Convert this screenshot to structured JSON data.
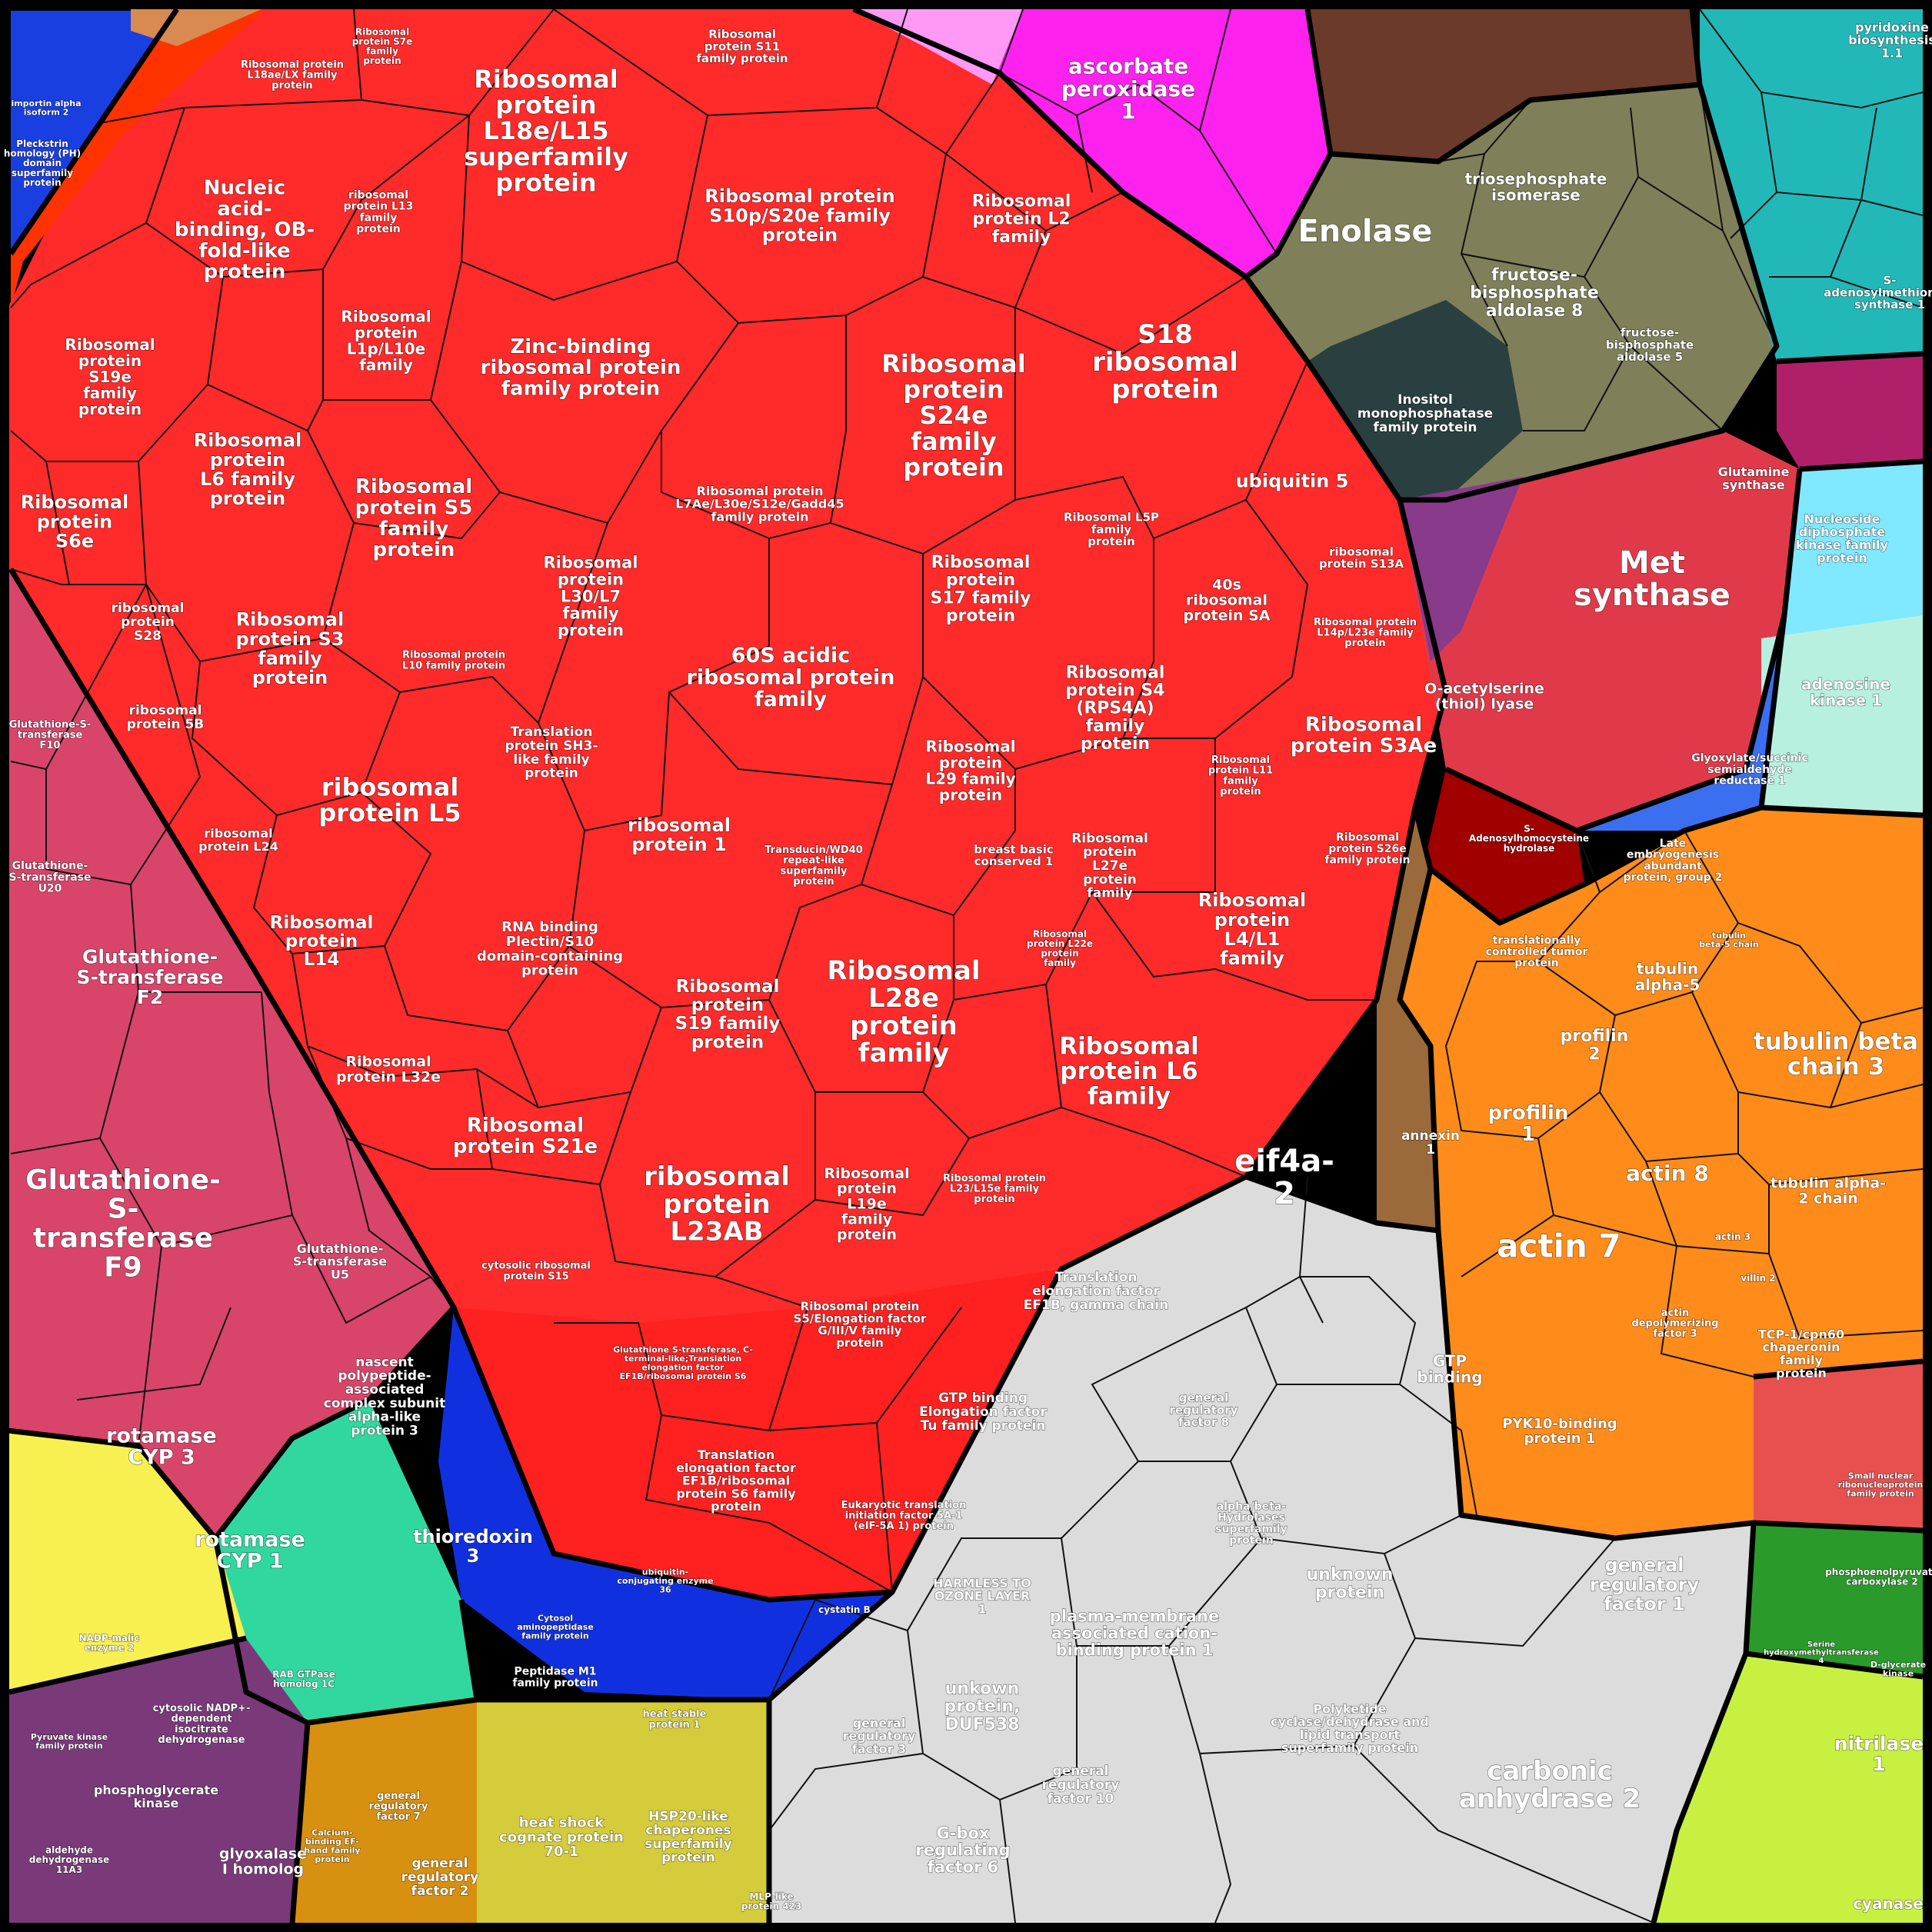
{
  "title": "",
  "colors": {
    "ribosomal": "#ff2a2a",
    "gst": "#d9456a",
    "grey": "#dcdcdc",
    "orange": "#ff8c1a",
    "magenta": "#ff22ee",
    "olive": "#7f7f5a",
    "teal": "#22b8b8",
    "blue": "#1a3fe0",
    "yellow": "#d4cc3a",
    "purple": "#7a3a7a",
    "green": "#2a9a2a",
    "lime": "#c8f040",
    "cyan": "#7fe8ff",
    "crimson": "#e03a4a",
    "darkred": "#a00000",
    "gold": "#d89010",
    "brown": "#9a6a3a"
  },
  "cells": [
    {
      "id": "c1",
      "label": "Ribosomal protein L18e/L15 superfamily protein",
      "size": 32
    },
    {
      "id": "c2",
      "label": "Ribosomal protein S10p/S20e family protein",
      "size": 24
    },
    {
      "id": "c3",
      "label": "Nucleic acid-binding, OB-fold-like protein",
      "size": 26
    },
    {
      "id": "c4",
      "label": "Ribosomal protein L2 family",
      "size": 22
    },
    {
      "id": "c5",
      "label": "S18 ribosomal protein",
      "size": 34
    },
    {
      "id": "c6",
      "label": "Zinc-binding ribosomal protein family protein",
      "size": 26
    },
    {
      "id": "c7",
      "label": "Ribosomal protein S24e family protein",
      "size": 32
    },
    {
      "id": "c8",
      "label": "Ribosomal protein S19e family protein",
      "size": 20
    },
    {
      "id": "c9",
      "label": "Ribosomal protein L1p/L10e family",
      "size": 20
    },
    {
      "id": "c10",
      "label": "Ribosomal protein L6 family protein",
      "size": 24
    },
    {
      "id": "c11",
      "label": "Ribosomal protein S5 family protein",
      "size": 26
    },
    {
      "id": "c12",
      "label": "ubiquitin 5",
      "size": 24
    },
    {
      "id": "c13",
      "label": "Ribosomal protein S6e",
      "size": 24
    },
    {
      "id": "c14",
      "label": "Ribosomal protein L7Ae/L30e/S12e/Gadd45 family protein",
      "size": 16
    },
    {
      "id": "c15",
      "label": "Ribosomal protein L30/L7 family protein",
      "size": 21
    },
    {
      "id": "c16",
      "label": "Ribosomal protein S17 family protein",
      "size": 22
    },
    {
      "id": "c17",
      "label": "40s ribosomal protein SA",
      "size": 19
    },
    {
      "id": "c18",
      "label": "ribosomal protein S28",
      "size": 17
    },
    {
      "id": "c19",
      "label": "Ribosomal protein S3 family protein",
      "size": 24
    },
    {
      "id": "c20",
      "label": "60S acidic ribosomal protein family",
      "size": 27
    },
    {
      "id": "c21",
      "label": "Ribosomal protein S4 (RPS4A) family protein",
      "size": 22
    },
    {
      "id": "c22",
      "label": "Ribosomal protein S3Ae",
      "size": 26
    },
    {
      "id": "c23",
      "label": "ribosomal protein 5B",
      "size": 17
    },
    {
      "id": "c24",
      "label": "Translation protein SH3-like family protein",
      "size": 17
    },
    {
      "id": "c25",
      "label": "ribosomal protein L5",
      "size": 32
    },
    {
      "id": "c26",
      "label": "Ribosomal protein L29 family protein",
      "size": 20
    },
    {
      "id": "c27",
      "label": "ribosomal protein 1",
      "size": 24
    },
    {
      "id": "c28",
      "label": "ribosomal protein L24",
      "size": 16
    },
    {
      "id": "c29",
      "label": "breast basic conserved 1",
      "size": 15
    },
    {
      "id": "c30",
      "label": "Ribosomal protein L27e protein family",
      "size": 17
    },
    {
      "id": "c31",
      "label": "Ribosomal protein L14",
      "size": 23
    },
    {
      "id": "c32",
      "label": "RNA binding Plectin/S10 domain-containing protein",
      "size": 18
    },
    {
      "id": "c33",
      "label": "Ribosomal protein L4/L1 family",
      "size": 24
    },
    {
      "id": "c34",
      "label": "Ribosomal protein S19 family protein",
      "size": 23
    },
    {
      "id": "c35",
      "label": "Ribosomal L28e protein family",
      "size": 34
    },
    {
      "id": "c36",
      "label": "Ribosomal protein L32e",
      "size": 19
    },
    {
      "id": "c37",
      "label": "Ribosomal protein L6 family",
      "size": 31
    },
    {
      "id": "c38",
      "label": "Ribosomal protein S21e",
      "size": 26
    },
    {
      "id": "c39",
      "label": "ribosomal protein L23AB",
      "size": 34
    },
    {
      "id": "c40",
      "label": "Ribosomal protein L19e family protein",
      "size": 19
    },
    {
      "id": "c41",
      "label": "eif4a-2",
      "size": 40
    },
    {
      "id": "c42",
      "label": "Translation elongation factor EF1B, gamma chain",
      "size": 17
    },
    {
      "id": "c43",
      "label": "GTP binding Elongation factor Tu family protein",
      "size": 17
    },
    {
      "id": "c44",
      "label": "Translation elongation factor EF1B/ribosomal protein S6 family protein",
      "size": 16
    },
    {
      "id": "c45",
      "label": "Glutathione-S-transferase F2",
      "size": 25
    },
    {
      "id": "c46",
      "label": "Glutathione-S-transferase F9",
      "size": 36
    },
    {
      "id": "c47",
      "label": "rotamase CYP 3",
      "size": 27
    },
    {
      "id": "c48",
      "label": "rotamase CYP 1",
      "size": 27
    },
    {
      "id": "c49",
      "label": "nascent polypeptide-associated complex subunit alpha-like protein 3",
      "size": 17
    },
    {
      "id": "c50",
      "label": "thioredoxin 3",
      "size": 24
    },
    {
      "id": "c51",
      "label": "ascorbate peroxidase 1",
      "size": 28
    },
    {
      "id": "c52",
      "label": "Enolase",
      "size": 40
    },
    {
      "id": "c53",
      "label": "triosephosphate isomerase",
      "size": 20
    },
    {
      "id": "c54",
      "label": "fructose-bisphosphate aldolase 8",
      "size": 22
    },
    {
      "id": "c55",
      "label": "Inositol monophosphatase family protein",
      "size": 17
    },
    {
      "id": "c56",
      "label": "Met synthase",
      "size": 40
    },
    {
      "id": "c57",
      "label": "O-acetylserine (thiol) lyase",
      "size": 19
    },
    {
      "id": "c58",
      "label": "adenosine kinase 1",
      "size": 20
    },
    {
      "id": "c59",
      "label": "Nucleoside diphosphate kinase family protein",
      "size": 16
    },
    {
      "id": "c60",
      "label": "tubulin beta chain 3",
      "size": 31
    },
    {
      "id": "c61",
      "label": "profilin 1",
      "size": 26
    },
    {
      "id": "c62",
      "label": "profilin 2",
      "size": 22
    },
    {
      "id": "c63",
      "label": "actin 8",
      "size": 28
    },
    {
      "id": "c64",
      "label": "actin 7",
      "size": 42
    },
    {
      "id": "c65",
      "label": "tubulin alpha-2 chain",
      "size": 19
    },
    {
      "id": "c66",
      "label": "tubulin alpha-5",
      "size": 20
    },
    {
      "id": "c67",
      "label": "TCP-1/cpn60 chaperonin family protein",
      "size": 16
    },
    {
      "id": "c68",
      "label": "annexin 1",
      "size": 17
    },
    {
      "id": "c69",
      "label": "carbonic anhydrase 2",
      "size": 34
    },
    {
      "id": "c70",
      "label": "general regulatory factor 1",
      "size": 24
    },
    {
      "id": "c71",
      "label": "plasma-membrane associated cation-binding protein 1",
      "size": 21
    },
    {
      "id": "c72",
      "label": "unknown protein",
      "size": 22
    },
    {
      "id": "c73",
      "label": "unkown protein, DUF538",
      "size": 22
    },
    {
      "id": "c74",
      "label": "G-box regulating factor 6",
      "size": 21
    },
    {
      "id": "c75",
      "label": "Polyketide cyclase/dehydrase and lipid transport superfamily protein",
      "size": 16
    },
    {
      "id": "c76",
      "label": "heat shock cognate protein 70-1",
      "size": 18
    },
    {
      "id": "c77",
      "label": "HSP20-like chaperones superfamily protein",
      "size": 17
    },
    {
      "id": "c78",
      "label": "general regulatory factor 2",
      "size": 17
    },
    {
      "id": "c79",
      "label": "phosphoglycerate kinase",
      "size": 16
    },
    {
      "id": "c80",
      "label": "glyoxalase I homolog",
      "size": 19
    },
    {
      "id": "c81",
      "label": "nitrilase 1",
      "size": 25
    },
    {
      "id": "c82",
      "label": "Peptidase M1 family protein",
      "size": 14
    },
    {
      "id": "c83",
      "label": "Glyoxylate/succinic semialdehyde reductase 1",
      "size": 14
    },
    {
      "id": "c84",
      "label": "Glutamine synthase",
      "size": 16
    },
    {
      "id": "c85",
      "label": "S-adenosylmethionine synthase 1",
      "size": 15
    },
    {
      "id": "c86",
      "label": "pyridoxine biosynthesis 1.1",
      "size": 16
    },
    {
      "id": "c87",
      "label": "cyanase",
      "size": 20
    },
    {
      "id": "c88",
      "label": "Late embryogenesis abundant protein, group 2",
      "size": 14
    },
    {
      "id": "c89",
      "label": "S-Adenosylhomocysteine hydrolase",
      "size": 12
    },
    {
      "id": "c90",
      "label": "Pleckstrin homology (PH) domain superfamily protein",
      "size": 12
    },
    {
      "id": "c91",
      "label": "importin alpha isoform 2",
      "size": 11
    },
    {
      "id": "c92",
      "label": "cytosolic NADP+-dependent isocitrate dehydrogenase",
      "size": 13
    },
    {
      "id": "c93",
      "label": "general regulatory factor 3",
      "size": 16
    },
    {
      "id": "c94",
      "label": "general regulatory factor 10",
      "size": 17
    },
    {
      "id": "c95",
      "label": "general regulatory factor 8",
      "size": 15
    },
    {
      "id": "c96",
      "label": "GTP binding",
      "size": 20
    },
    {
      "id": "c97",
      "label": "PYK10-binding protein 1",
      "size": 18
    },
    {
      "id": "c98",
      "label": "HARMLESS TO OZONE LAYER 1",
      "size": 16
    },
    {
      "id": "c99",
      "label": "alpha/beta-Hydrolases superfamily protein",
      "size": 14
    },
    {
      "id": "c100",
      "label": "Glutathione-S-transferase U5",
      "size": 16
    },
    {
      "id": "c101",
      "label": "Glutathione-S-transferase F10",
      "size": 13
    },
    {
      "id": "c102",
      "label": "Glutathione-S-transferase U20",
      "size": 14
    },
    {
      "id": "c103",
      "label": "fructose-bisphosphate aldolase 5",
      "size": 15
    },
    {
      "id": "c104",
      "label": "phosphoenolpyruvate carboxylase 2",
      "size": 12
    },
    {
      "id": "c105",
      "label": "Translation elongation factor EF1B/ribosomal protein S6 family protein",
      "size": 0
    },
    {
      "id": "c106",
      "label": "Ribosomal protein S5/Elongation factor G/III/V family protein",
      "size": 15
    },
    {
      "id": "c107",
      "label": "Eukaryotic translation initiation factor 5A-1 (eIF-5A 1) protein",
      "size": 13
    },
    {
      "id": "c108",
      "label": "Glutathione S-transferase, C-terminal-like;Translation elongation factor EF1B/ribosomal protein S6",
      "size": 11
    },
    {
      "id": "c109",
      "label": "ribosomal protein S13A",
      "size": 15
    },
    {
      "id": "c110",
      "label": "Ribosomal protein S26e family protein",
      "size": 14
    },
    {
      "id": "c111",
      "label": "Ribosomal L5P family protein",
      "size": 15
    },
    {
      "id": "c112",
      "label": "Ribosomal protein L14p/L23e family protein",
      "size": 13
    },
    {
      "id": "c113",
      "label": "Ribosomal protein L11 family protein",
      "size": 13
    },
    {
      "id": "c114",
      "label": "Ribosomal protein L10 family protein",
      "size": 13
    },
    {
      "id": "c115",
      "label": "ribosomal protein L13 family protein",
      "size": 14
    },
    {
      "id": "c116",
      "label": "Ribosomal protein S7e family protein",
      "size": 12
    },
    {
      "id": "c117",
      "label": "Ribosomal protein L18ae/LX family protein",
      "size": 13
    },
    {
      "id": "c118",
      "label": "Ribosomal protein S11 family protein",
      "size": 15
    },
    {
      "id": "c119",
      "label": "Ribosomal protein L23/L15e family protein",
      "size": 13
    },
    {
      "id": "c120",
      "label": "cytosolic ribosomal protein S15",
      "size": 13
    },
    {
      "id": "c121",
      "label": "Transducin/WD40 repeat-like superfamily protein",
      "size": 13
    },
    {
      "id": "c122",
      "label": "Ribosomal protein L22e protein family",
      "size": 12
    },
    {
      "id": "c123",
      "label": "translationally controlled tumor protein",
      "size": 14
    },
    {
      "id": "c124",
      "label": "actin depolymerizing factor 3",
      "size": 13
    },
    {
      "id": "c125",
      "label": "heat stable protein 1",
      "size": 13
    },
    {
      "id": "c126",
      "label": "Small nuclear ribonucleoprotein family protein",
      "size": 11
    },
    {
      "id": "c127",
      "label": "Serine hydroxymethyltransferase 4",
      "size": 10
    },
    {
      "id": "c128",
      "label": "D-glycerate kinase",
      "size": 11
    },
    {
      "id": "c129",
      "label": "ubiquitin-conjugating enzyme 36",
      "size": 11
    },
    {
      "id": "c130",
      "label": "cystatin B",
      "size": 12
    },
    {
      "id": "c131",
      "label": "Cytosol aminopeptidase family protein",
      "size": 11
    },
    {
      "id": "c132",
      "label": "RAB GTPase homolog 1C",
      "size": 12
    },
    {
      "id": "c133",
      "label": "NADP-malic enzyme 2",
      "size": 12
    },
    {
      "id": "c134",
      "label": "aldehyde dehydrogenase 11A3",
      "size": 12
    },
    {
      "id": "c135",
      "label": "Pyruvate kinase family protein",
      "size": 11
    },
    {
      "id": "c136",
      "label": "Calcium-binding EF-hand family protein",
      "size": 11
    },
    {
      "id": "c137",
      "label": "general regulatory factor 7",
      "size": 13
    },
    {
      "id": "c138",
      "label": "MLP-like protein 423",
      "size": 12
    },
    {
      "id": "c139",
      "label": "villin 2",
      "size": 12
    },
    {
      "id": "c140",
      "label": "actin 3",
      "size": 12
    },
    {
      "id": "c141",
      "label": "tubulin beta-5 chain",
      "size": 11
    }
  ],
  "regions": [
    {
      "id": "r-ribo",
      "name": "ribosomal"
    },
    {
      "id": "r-gst",
      "name": "gst"
    },
    {
      "id": "r-grey",
      "name": "grey"
    },
    {
      "id": "r-orange",
      "name": "orange"
    }
  ]
}
